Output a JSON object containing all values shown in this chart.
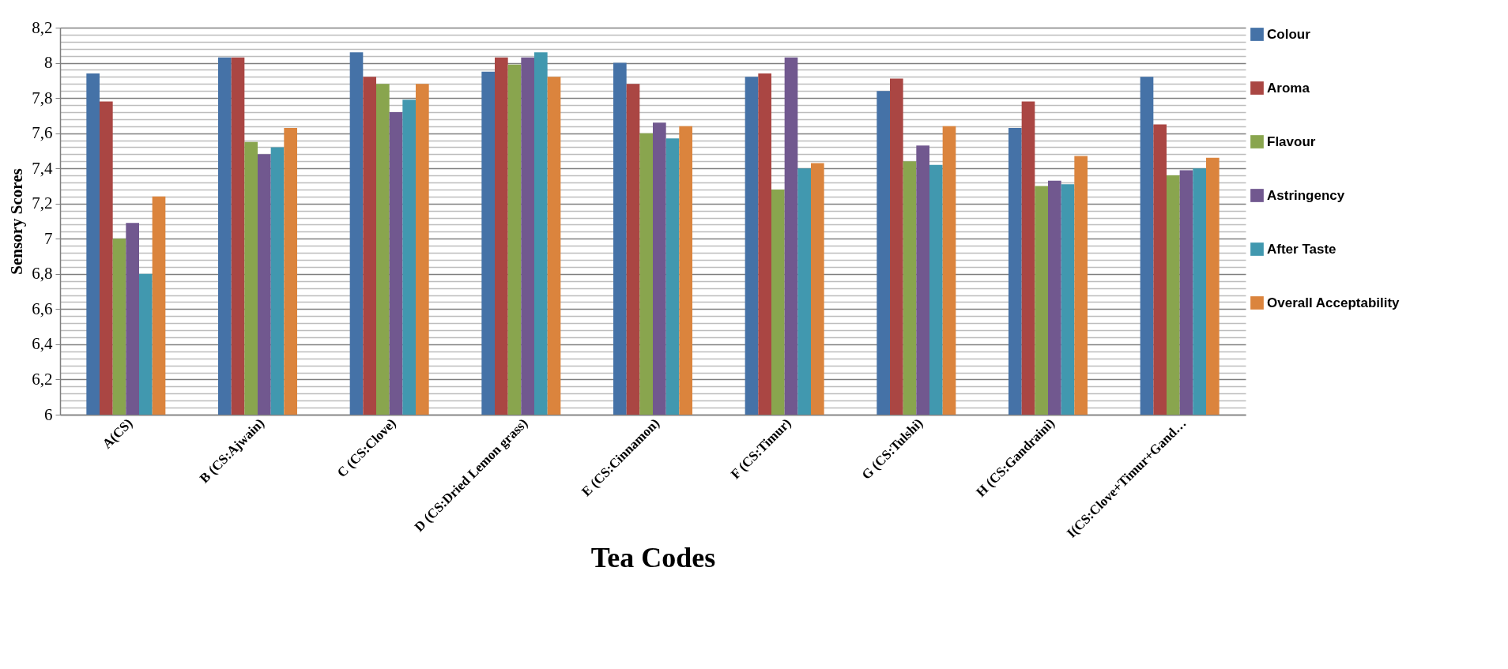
{
  "chart_data": {
    "type": "bar",
    "xlabel": "Tea Codes",
    "ylabel": "Sensory Scores",
    "categories": [
      "A(CS)",
      "B  (CS:Ajwain)",
      "C  (CS:Clove)",
      "D (CS:Dried Lemon grass)",
      "E (CS:Cinnamon)",
      "F (CS:Timur)",
      "G (CS:Tulshi)",
      "H (CS:Gandraini)",
      "I(CS:Clove+Timur+Gand…"
    ],
    "series": [
      {
        "name": "Colour",
        "color": "#4572a7",
        "values": [
          7.94,
          8.03,
          8.06,
          7.95,
          8.0,
          7.92,
          7.84,
          7.63,
          7.92
        ]
      },
      {
        "name": "Aroma",
        "color": "#aa4643",
        "values": [
          7.78,
          8.03,
          7.92,
          8.03,
          7.88,
          7.94,
          7.91,
          7.78,
          7.65
        ]
      },
      {
        "name": "Flavour",
        "color": "#89a54e",
        "values": [
          7.0,
          7.55,
          7.88,
          7.99,
          7.6,
          7.28,
          7.44,
          7.3,
          7.36
        ]
      },
      {
        "name": "Astringency",
        "color": "#71588f",
        "values": [
          7.09,
          7.48,
          7.72,
          8.03,
          7.66,
          8.03,
          7.53,
          7.33,
          7.39
        ]
      },
      {
        "name": "After Taste",
        "color": "#4198af",
        "values": [
          6.8,
          7.52,
          7.79,
          8.06,
          7.57,
          7.4,
          7.42,
          7.31,
          7.4
        ]
      },
      {
        "name": "Overall Acceptability",
        "color": "#db843d",
        "values": [
          7.24,
          7.63,
          7.88,
          7.92,
          7.64,
          7.43,
          7.64,
          7.47,
          7.46
        ]
      }
    ],
    "ylim": [
      6,
      8.2
    ],
    "yticks": [
      6,
      {
        "value": 6.04,
        "label": null
      },
      {
        "value": 6.08,
        "label": null
      },
      {
        "value": 6.12,
        "label": null
      },
      {
        "value": 6.16,
        "label": null
      },
      {
        "value": 6.2,
        "label": "6,2"
      },
      {
        "value": 6.24,
        "label": null
      },
      {
        "value": 6.28,
        "label": null
      },
      {
        "value": 6.32,
        "label": null
      },
      {
        "value": 6.36,
        "label": null
      },
      {
        "value": 6.4,
        "label": "6,4"
      },
      {
        "value": 6.44,
        "label": null
      },
      {
        "value": 6.48,
        "label": null
      },
      {
        "value": 6.52,
        "label": null
      },
      {
        "value": 6.56,
        "label": null
      },
      {
        "value": 6.6,
        "label": "6,6"
      },
      {
        "value": 6.64,
        "label": null
      },
      {
        "value": 6.68,
        "label": null
      },
      {
        "value": 6.72,
        "label": null
      },
      {
        "value": 6.76,
        "label": null
      },
      {
        "value": 6.8,
        "label": "6,8"
      },
      {
        "value": 6.84,
        "label": null
      },
      {
        "value": 6.88,
        "label": null
      },
      {
        "value": 6.92,
        "label": null
      },
      {
        "value": 6.96,
        "label": null
      },
      7,
      {
        "value": 7.04,
        "label": null
      },
      {
        "value": 7.08,
        "label": null
      },
      {
        "value": 7.12,
        "label": null
      },
      {
        "value": 7.16,
        "label": null
      },
      {
        "value": 7.2,
        "label": "7,2"
      },
      {
        "value": 7.24,
        "label": null
      },
      {
        "value": 7.28,
        "label": null
      },
      {
        "value": 7.32,
        "label": null
      },
      {
        "value": 7.36,
        "label": null
      },
      {
        "value": 7.4,
        "label": "7,4"
      },
      {
        "value": 7.44,
        "label": null
      },
      {
        "value": 7.48,
        "label": null
      },
      {
        "value": 7.52,
        "label": null
      },
      {
        "value": 7.56,
        "label": null
      },
      {
        "value": 7.6,
        "label": "7,6"
      },
      {
        "value": 7.64,
        "label": null
      },
      {
        "value": 7.68,
        "label": null
      },
      {
        "value": 7.72,
        "label": null
      },
      {
        "value": 7.76,
        "label": null
      },
      {
        "value": 7.8,
        "label": "7,8"
      },
      {
        "value": 7.84,
        "label": null
      },
      {
        "value": 7.88,
        "label": null
      },
      {
        "value": 7.92,
        "label": null
      },
      {
        "value": 7.96,
        "label": null
      },
      8,
      {
        "value": 8.04,
        "label": null
      },
      {
        "value": 8.08,
        "label": null
      },
      {
        "value": 8.12,
        "label": null
      },
      {
        "value": 8.16,
        "label": null
      },
      {
        "value": 8.2,
        "label": "8,2"
      }
    ],
    "grid": "y",
    "legend": "right"
  }
}
